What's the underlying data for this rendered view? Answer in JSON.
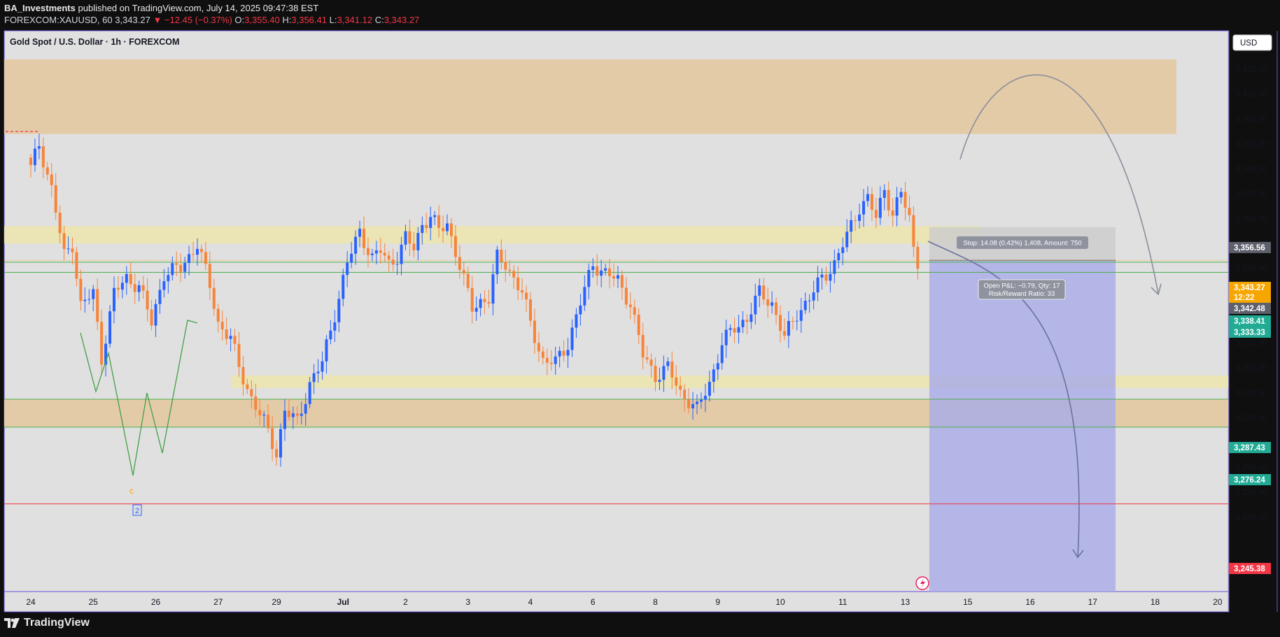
{
  "header": {
    "author": "BA_Investments",
    "published": "published on TradingView.com, July 14, 2025 09:47:38 EST",
    "symbol": "FOREXCOM:XAUUSD, 60",
    "last": "3,343.27",
    "change": "▼ −12.45 (−0.37%)",
    "o_label": "O:",
    "o_val": "3,355.40",
    "h_label": "H:",
    "h_val": "3,356.41",
    "l_label": "L:",
    "l_val": "3,341.12",
    "c_label": "C:",
    "c_val": "3,343.27"
  },
  "pane": {
    "title": "Gold Spot / U.S. Dollar · 1h · FOREXCOM",
    "currency": "USD"
  },
  "position_tool": {
    "stop_label": "Stop: 14.08 (0.42%) 1,408, Amount: 750",
    "pnl_label": "Open P&L: −0.79, Qty: 17",
    "rr_label": "Risk/Reward Ratio: 33"
  },
  "wave_labels": {
    "c": "c",
    "two": "2"
  },
  "price_badges": [
    {
      "text": "3,356.56",
      "bg": "#5d606b"
    },
    {
      "text": "3,343.27",
      "bg": "#f7a600",
      "sub": "12:22"
    },
    {
      "text": "3,342.48",
      "bg": "#5d606b"
    },
    {
      "text": "3,338.41",
      "bg": "#22ab94"
    },
    {
      "text": "3,333.33",
      "bg": "#22ab94"
    },
    {
      "text": "3,287.43",
      "bg": "#22ab94"
    },
    {
      "text": "3,276.24",
      "bg": "#22ab94"
    },
    {
      "text": "3,245.38",
      "bg": "#f23645"
    }
  ],
  "colors": {
    "up": "#2962ff",
    "down": "#f7843a",
    "supply_zone": "#e4cba8",
    "yellow_zone": "#ebe4b5",
    "green_line": "#4caf50",
    "red_line": "#f23645",
    "target_zone": "#aaaee6",
    "stop_zone": "#cdcdcd",
    "curve": "#8a8f9c"
  },
  "footer": {
    "brand": "TradingView"
  },
  "chart_data": {
    "type": "candlestick",
    "title": "Gold Spot / U.S. Dollar · 1h · FOREXCOM",
    "ylim": [
      3236,
      3430
    ],
    "y_ticks": [
      3240,
      3250,
      3260,
      3270,
      3280,
      3290,
      3300,
      3310,
      3320,
      3330,
      3340,
      3350,
      3360,
      3370,
      3380,
      3390,
      3400,
      3410,
      3420
    ],
    "y_tick_labels": [
      "3,240.00",
      "3,250.00",
      "3,260.00",
      "3,270.00",
      "3,280.00",
      "3,290.00",
      "3,300.00",
      "3,310.00",
      "3,320.00",
      "3,330.00",
      "3,340.00",
      "3,350.00",
      "3,360.00",
      "3,370.00",
      "3,380.00",
      "3,390.00",
      "3,400.00",
      "3,410.00",
      "3,420.00"
    ],
    "x_tick_labels": [
      "24",
      "25",
      "26",
      "27",
      "29",
      "Jul",
      "2",
      "3",
      "4",
      "6",
      "8",
      "9",
      "10",
      "11",
      "13",
      "15",
      "16",
      "17",
      "18",
      "20"
    ],
    "x_tick_index": [
      0,
      15,
      30,
      45,
      59,
      75,
      90,
      105,
      120,
      135,
      150,
      165,
      180,
      195,
      210,
      225,
      240,
      255,
      270,
      285
    ],
    "anchors": [
      [
        0,
        3380
      ],
      [
        2,
        3390
      ],
      [
        5,
        3372
      ],
      [
        8,
        3345
      ],
      [
        10,
        3350
      ],
      [
        12,
        3325
      ],
      [
        15,
        3330
      ],
      [
        17,
        3304
      ],
      [
        20,
        3330
      ],
      [
        23,
        3336
      ],
      [
        26,
        3333
      ],
      [
        29,
        3318
      ],
      [
        32,
        3338
      ],
      [
        36,
        3340
      ],
      [
        40,
        3350
      ],
      [
        43,
        3333
      ],
      [
        45,
        3318
      ],
      [
        48,
        3312
      ],
      [
        50,
        3300
      ],
      [
        53,
        3288
      ],
      [
        56,
        3278
      ],
      [
        59,
        3266
      ],
      [
        61,
        3283
      ],
      [
        64,
        3278
      ],
      [
        67,
        3294
      ],
      [
        70,
        3302
      ],
      [
        73,
        3322
      ],
      [
        76,
        3342
      ],
      [
        79,
        3355
      ],
      [
        82,
        3344
      ],
      [
        84,
        3347
      ],
      [
        86,
        3342
      ],
      [
        88,
        3345
      ],
      [
        90,
        3352
      ],
      [
        92,
        3348
      ],
      [
        94,
        3358
      ],
      [
        96,
        3361
      ],
      [
        98,
        3355
      ],
      [
        100,
        3358
      ],
      [
        102,
        3347
      ],
      [
        104,
        3335
      ],
      [
        106,
        3324
      ],
      [
        108,
        3327
      ],
      [
        110,
        3328
      ],
      [
        112,
        3344
      ],
      [
        114,
        3342
      ],
      [
        116,
        3336
      ],
      [
        118,
        3330
      ],
      [
        120,
        3318
      ],
      [
        123,
        3303
      ],
      [
        126,
        3302
      ],
      [
        129,
        3310
      ],
      [
        132,
        3326
      ],
      [
        135,
        3342
      ],
      [
        138,
        3338
      ],
      [
        141,
        3335
      ],
      [
        144,
        3326
      ],
      [
        147,
        3305
      ],
      [
        150,
        3297
      ],
      [
        153,
        3300
      ],
      [
        156,
        3290
      ],
      [
        158,
        3287
      ],
      [
        160,
        3283
      ],
      [
        163,
        3294
      ],
      [
        166,
        3310
      ],
      [
        169,
        3316
      ],
      [
        172,
        3320
      ],
      [
        175,
        3330
      ],
      [
        178,
        3326
      ],
      [
        181,
        3312
      ],
      [
        184,
        3322
      ],
      [
        187,
        3328
      ],
      [
        190,
        3336
      ],
      [
        193,
        3342
      ],
      [
        196,
        3353
      ],
      [
        199,
        3365
      ],
      [
        201,
        3368
      ],
      [
        203,
        3360
      ],
      [
        205,
        3372
      ],
      [
        207,
        3362
      ],
      [
        209,
        3370
      ],
      [
        211,
        3360
      ],
      [
        212,
        3348
      ],
      [
        213,
        3343
      ]
    ],
    "levels": {
      "red_line": 3245.38,
      "green_lines": [
        3342.48,
        3338.41,
        3287.43,
        3276.24
      ],
      "entry": 3343.27,
      "stop": 3356.56
    },
    "zones": [
      {
        "name": "supply",
        "from": 3394,
        "to": 3424
      },
      {
        "name": "upper-yellow",
        "from": 3350,
        "to": 3357
      },
      {
        "name": "lower-yellow",
        "from": 3292,
        "to": 3297
      },
      {
        "name": "demand",
        "from": 3276.24,
        "to": 3287.43
      }
    ]
  }
}
